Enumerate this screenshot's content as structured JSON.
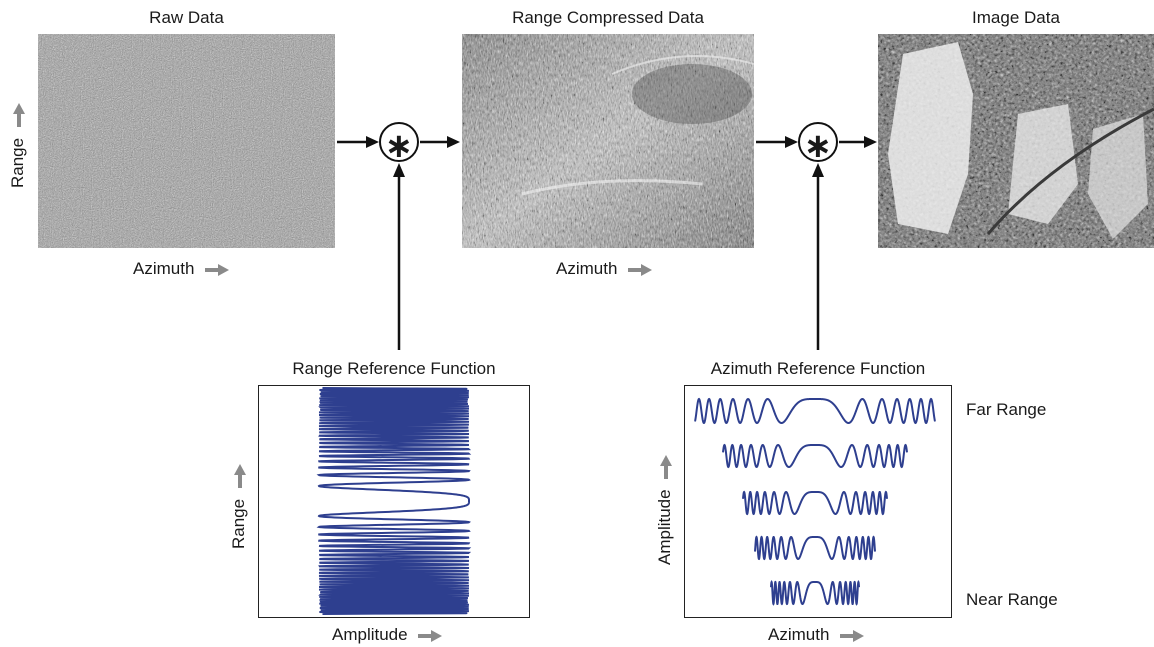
{
  "panels": {
    "raw": {
      "title": "Raw Data",
      "xlabel": "Azimuth",
      "ylabel": "Range"
    },
    "range_compressed": {
      "title": "Range Compressed Data",
      "xlabel": "Azimuth"
    },
    "image": {
      "title": "Image Data"
    }
  },
  "operators": {
    "convolution_symbol": "∗"
  },
  "range_reference": {
    "title": "Range Reference Function",
    "xlabel": "Amplitude",
    "ylabel": "Range"
  },
  "azimuth_reference": {
    "title": "Azimuth Reference Function",
    "xlabel": "Azimuth",
    "ylabel": "Amplitude",
    "far_label": "Far Range",
    "near_label": "Near Range"
  },
  "colors": {
    "arrow": "#111111",
    "axis_arrow": "#8a8a8a",
    "chirp_stroke": "#2e3f8f",
    "chirp_fill": "#8fa06a"
  },
  "icons": {
    "direction_arrow": "right-arrow-icon",
    "up_arrow": "up-arrow-icon"
  }
}
